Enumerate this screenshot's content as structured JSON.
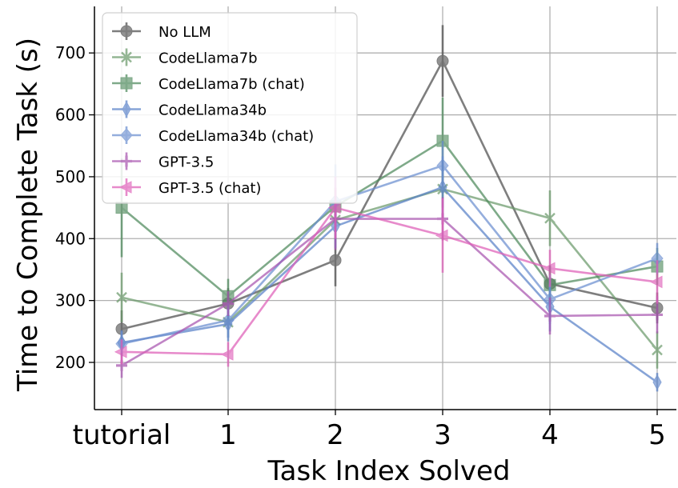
{
  "chart_data": {
    "type": "line",
    "xlabel": "Task Index Solved",
    "ylabel": "Time to Complete Task (s)",
    "categories": [
      "tutorial",
      "1",
      "2",
      "3",
      "4",
      "5"
    ],
    "yticks": [
      200,
      300,
      400,
      500,
      600,
      700
    ],
    "ylim": [
      125,
      775
    ],
    "grid": true,
    "legend_position": "top-left",
    "series": [
      {
        "name": "No LLM",
        "color": "#4d4d4d",
        "marker": "circle",
        "values": [
          254,
          295,
          365,
          687,
          327,
          288
        ],
        "err": [
          30,
          25,
          42,
          58,
          30,
          25
        ]
      },
      {
        "name": "CodeLlama7b",
        "color": "#6b9a6b",
        "marker": "x",
        "values": [
          305,
          265,
          430,
          480,
          433,
          220
        ],
        "err": [
          40,
          25,
          30,
          30,
          45,
          30
        ]
      },
      {
        "name": "CodeLlama7b (chat)",
        "color": "#4e8a5c",
        "marker": "square",
        "values": [
          450,
          307,
          452,
          558,
          325,
          355
        ],
        "err": [
          80,
          28,
          30,
          70,
          30,
          30
        ]
      },
      {
        "name": "CodeLlama34b",
        "color": "#5a82c8",
        "marker": "thin-diamond",
        "values": [
          232,
          262,
          420,
          483,
          290,
          168
        ],
        "err": [
          20,
          28,
          35,
          50,
          40,
          15
        ]
      },
      {
        "name": "CodeLlama34b (chat)",
        "color": "#6c8fd0",
        "marker": "diamond",
        "values": [
          230,
          268,
          460,
          518,
          302,
          368
        ],
        "err": [
          20,
          28,
          60,
          40,
          40,
          25
        ]
      },
      {
        "name": "GPT-3.5",
        "color": "#a855b0",
        "marker": "plus",
        "values": [
          195,
          295,
          432,
          432,
          275,
          277
        ],
        "err": [
          20,
          20,
          50,
          35,
          30,
          30
        ]
      },
      {
        "name": "GPT-3.5 (chat)",
        "color": "#df5fb8",
        "marker": "triangle-left",
        "values": [
          217,
          213,
          450,
          405,
          352,
          330
        ],
        "err": [
          20,
          20,
          50,
          60,
          30,
          35
        ]
      }
    ]
  }
}
